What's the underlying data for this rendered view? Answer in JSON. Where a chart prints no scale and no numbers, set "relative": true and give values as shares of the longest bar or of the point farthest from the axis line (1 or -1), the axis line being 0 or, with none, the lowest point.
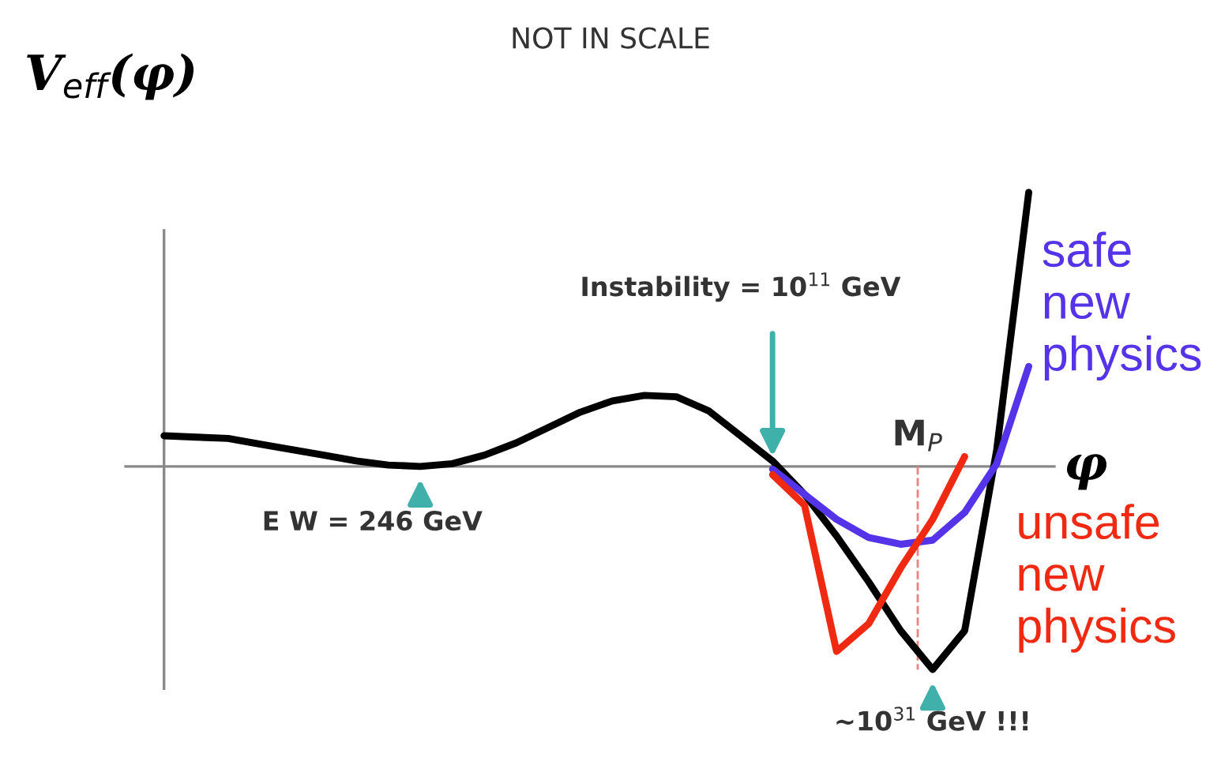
{
  "chart_data": {
    "type": "line",
    "relative": true,
    "title": "NOT IN SCALE",
    "ylabel": "V$_{eff}$(φ)",
    "xlabel": "φ",
    "grid": false,
    "marker": "none",
    "categories": [
      null,
      null,
      null,
      null,
      null,
      null,
      null,
      null,
      null,
      null,
      null,
      null,
      null,
      null,
      null,
      null,
      null,
      null,
      null,
      null,
      null,
      null,
      null,
      null,
      null,
      null,
      null,
      null
    ],
    "series": [
      {
        "color": "#000000",
        "values": [
          0.112,
          0.107,
          0.102,
          0.081,
          0.061,
          0.041,
          0.02,
          0.005,
          0.0,
          0.01,
          0.041,
          0.086,
          0.142,
          0.198,
          0.239,
          0.259,
          0.254,
          0.203,
          0.112,
          0.02,
          -0.102,
          -0.254,
          -0.421,
          -0.599,
          -0.741,
          -0.599,
          0.061,
          1.0
        ]
      },
      {
        "name": "safe new physics",
        "color": "#5533e8",
        "values": [
          null,
          null,
          null,
          null,
          null,
          null,
          null,
          null,
          null,
          null,
          null,
          null,
          null,
          null,
          null,
          null,
          null,
          null,
          null,
          -0.01,
          -0.102,
          -0.193,
          -0.259,
          -0.284,
          -0.269,
          -0.168,
          0.01,
          0.365
        ]
      },
      {
        "name": "unsafe new physics",
        "color": "#f02a12",
        "values": [
          null,
          null,
          null,
          null,
          null,
          null,
          null,
          null,
          null,
          null,
          null,
          null,
          null,
          null,
          null,
          null,
          null,
          null,
          null,
          -0.03,
          -0.142,
          -0.675,
          -0.574,
          -0.371,
          -0.193,
          0.036,
          null,
          null
        ]
      }
    ],
    "annotations": [
      "Instability = 10$^{11}$ GeV",
      "E W = 246 GeV",
      "~10$^{31}$ GeV !!!",
      "M$_{P}$"
    ]
  }
}
